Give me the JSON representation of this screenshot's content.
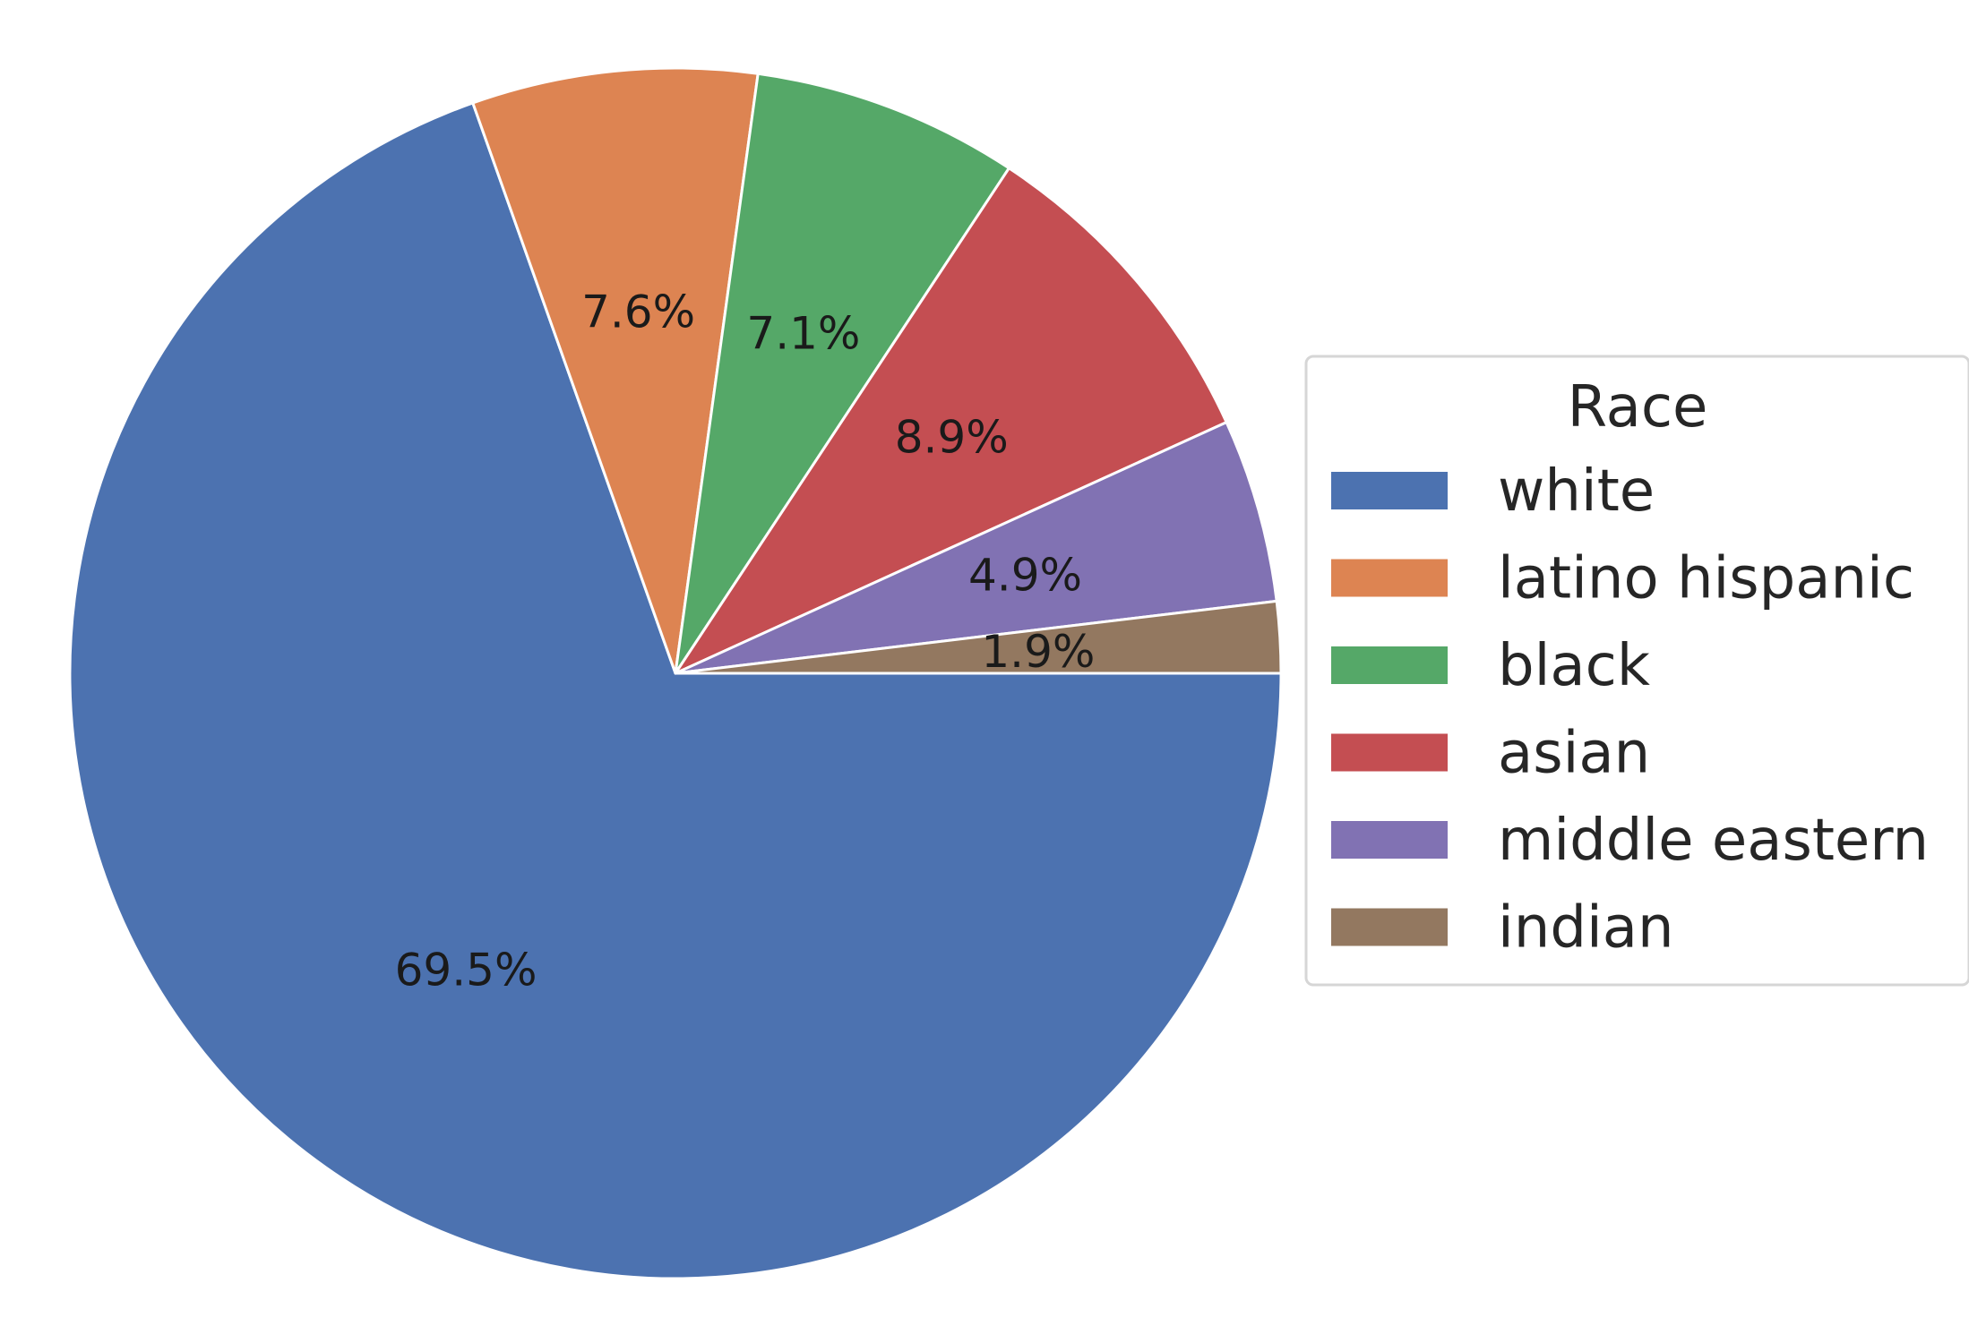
{
  "chart_data": {
    "type": "pie",
    "categories": [
      "white",
      "latino hispanic",
      "black",
      "asian",
      "middle eastern",
      "indian"
    ],
    "values": [
      69.5,
      7.6,
      7.1,
      8.9,
      4.9,
      1.9
    ],
    "labels": [
      "69.5%",
      "7.6%",
      "7.1%",
      "8.9%",
      "4.9%",
      "1.9%"
    ],
    "colors": [
      "#4c72b0",
      "#dd8452",
      "#55a868",
      "#c44e52",
      "#8172b3",
      "#937860"
    ],
    "direction": "clockwise",
    "start_angle_deg": 0,
    "legend": {
      "title": "Race",
      "placement": "right"
    }
  }
}
